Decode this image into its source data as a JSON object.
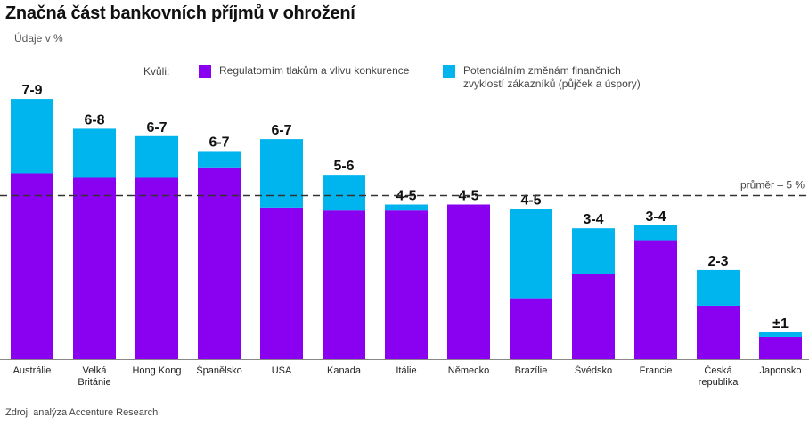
{
  "title": "Značná část bankovních příjmů v ohrožení",
  "subtitle": "Údaje v %",
  "legend": {
    "lead": "Kvůli:",
    "items": [
      {
        "label_lines": [
          "Regulatorním tlakům a vlivu konkurence"
        ],
        "color": "#8a00f0"
      },
      {
        "label_lines": [
          "Potenciálním změnám finančních",
          "zvyklostí zákazníků (půjček a úspory)"
        ],
        "color": "#00b4ee"
      }
    ]
  },
  "source": "Zdroj: analýza Accenture Research",
  "chart_data": {
    "type": "bar",
    "stacked": true,
    "categories": [
      [
        "Austrálie"
      ],
      [
        "Velká",
        "Británie"
      ],
      [
        "Hong Kong"
      ],
      [
        "Španělsko"
      ],
      [
        "USA"
      ],
      [
        "Kanada"
      ],
      [
        "Itálie"
      ],
      [
        "Německo"
      ],
      [
        "Brazílie"
      ],
      [
        "Švédsko"
      ],
      [
        "Francie"
      ],
      [
        "Česká",
        "republika"
      ],
      [
        "Japonsko"
      ]
    ],
    "series": [
      {
        "name": "Regulatorním tlakům a vlivu konkurence",
        "color": "#8a00f0",
        "values": [
          6.25,
          6.1,
          6.1,
          6.45,
          5.1,
          5.0,
          5.0,
          5.2,
          2.05,
          2.85,
          4.0,
          1.8,
          0.75
        ]
      },
      {
        "name": "Potenciálním změnám finančních zvyklostí zákazníků (půjček a úspory)",
        "color": "#00b4ee",
        "values": [
          2.5,
          1.65,
          1.4,
          0.55,
          2.3,
          1.2,
          0.2,
          0.0,
          3.0,
          1.55,
          0.5,
          1.2,
          0.15
        ]
      }
    ],
    "value_labels": [
      "7-9",
      "6-8",
      "6-7",
      "6-7",
      "6-7",
      "5-6",
      "4-5",
      "4-5",
      "4-5",
      "3-4",
      "3-4",
      "2-3",
      "±1"
    ],
    "reference_line": {
      "value": 5.5,
      "label": "průměr – 5 %"
    },
    "ylim": [
      0,
      11
    ],
    "grid": false
  }
}
